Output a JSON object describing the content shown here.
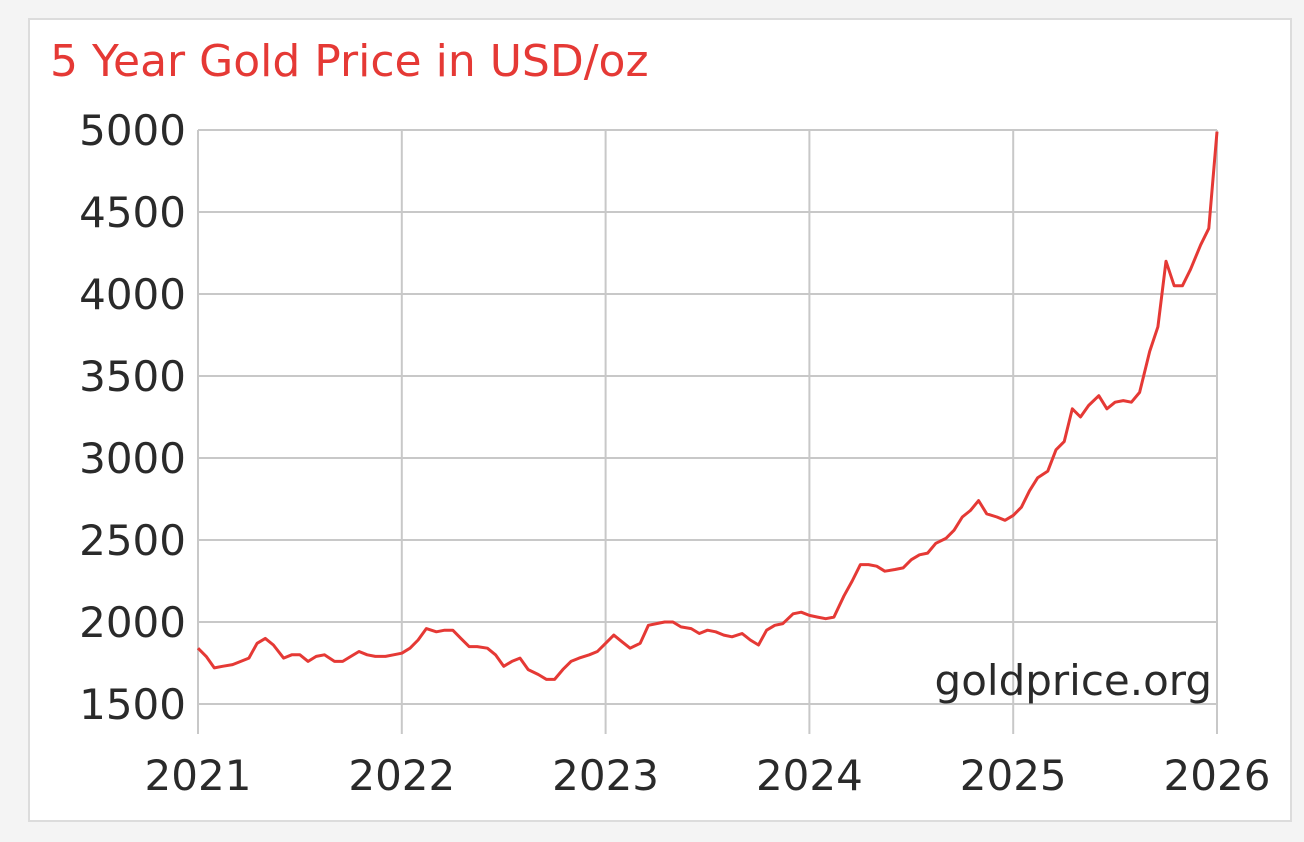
{
  "chart_data": {
    "type": "line",
    "title": "5 Year Gold Price in USD/oz",
    "watermark": "goldprice.org",
    "xlabel": "",
    "ylabel": "",
    "x_ticks": [
      "2021",
      "2022",
      "2023",
      "2024",
      "2025",
      "2026"
    ],
    "y_ticks": [
      "5000",
      "4500",
      "4000",
      "3500",
      "3000",
      "2500",
      "2000",
      "1500"
    ],
    "xlim": [
      2021,
      2026
    ],
    "ylim": [
      1500,
      5000
    ],
    "grid": true,
    "colors": {
      "line": "#e53935",
      "grid": "#c8c8c8",
      "title": "#e53935"
    },
    "series": [
      {
        "x": [
          2021.0,
          2021.04,
          2021.08,
          2021.12,
          2021.17,
          2021.21,
          2021.25,
          2021.29,
          2021.33,
          2021.37,
          2021.42,
          2021.46,
          2021.5,
          2021.54,
          2021.58,
          2021.62,
          2021.67,
          2021.71,
          2021.75,
          2021.79,
          2021.83,
          2021.87,
          2021.92,
          2021.96,
          2022.0,
          2022.04,
          2022.08,
          2022.12,
          2022.17,
          2022.21,
          2022.25,
          2022.29,
          2022.33,
          2022.37,
          2022.42,
          2022.46,
          2022.5,
          2022.54,
          2022.58,
          2022.62,
          2022.67,
          2022.71,
          2022.75,
          2022.79,
          2022.83,
          2022.87,
          2022.92,
          2022.96,
          2023.0,
          2023.04,
          2023.08,
          2023.12,
          2023.17,
          2023.21,
          2023.25,
          2023.29,
          2023.33,
          2023.37,
          2023.42,
          2023.46,
          2023.5,
          2023.54,
          2023.58,
          2023.62,
          2023.67,
          2023.71,
          2023.75,
          2023.79,
          2023.83,
          2023.87,
          2023.92,
          2023.96,
          2024.0,
          2024.04,
          2024.08,
          2024.12,
          2024.17,
          2024.21,
          2024.25,
          2024.29,
          2024.33,
          2024.37,
          2024.42,
          2024.46,
          2024.5,
          2024.54,
          2024.58,
          2024.62,
          2024.67,
          2024.71,
          2024.75,
          2024.79,
          2024.83,
          2024.87,
          2024.92,
          2024.96,
          2025.0,
          2025.04,
          2025.08,
          2025.12,
          2025.17,
          2025.21,
          2025.25,
          2025.29,
          2025.33,
          2025.37,
          2025.42,
          2025.46,
          2025.5,
          2025.54,
          2025.58,
          2025.62,
          2025.67,
          2025.71,
          2025.75,
          2025.79,
          2025.83,
          2025.87,
          2025.92,
          2025.96,
          2026.0
        ],
        "values": [
          1840,
          1790,
          1720,
          1730,
          1740,
          1760,
          1780,
          1870,
          1900,
          1860,
          1780,
          1800,
          1800,
          1760,
          1790,
          1800,
          1760,
          1760,
          1790,
          1820,
          1800,
          1790,
          1790,
          1800,
          1810,
          1840,
          1890,
          1960,
          1940,
          1950,
          1950,
          1900,
          1850,
          1850,
          1840,
          1800,
          1730,
          1760,
          1780,
          1710,
          1680,
          1650,
          1650,
          1710,
          1760,
          1780,
          1800,
          1820,
          1870,
          1920,
          1880,
          1840,
          1870,
          1980,
          1990,
          2000,
          2000,
          1970,
          1960,
          1930,
          1950,
          1940,
          1920,
          1910,
          1930,
          1890,
          1860,
          1950,
          1980,
          1990,
          2050,
          2060,
          2040,
          2030,
          2020,
          2030,
          2160,
          2250,
          2350,
          2350,
          2340,
          2310,
          2320,
          2330,
          2380,
          2410,
          2420,
          2480,
          2510,
          2560,
          2640,
          2680,
          2740,
          2660,
          2640,
          2620,
          2650,
          2700,
          2800,
          2880,
          2920,
          3050,
          3100,
          3300,
          3250,
          3320,
          3380,
          3300,
          3340,
          3350,
          3340,
          3400,
          3650,
          3800,
          4200,
          4050,
          4050,
          4150,
          4300,
          4400,
          4990
        ]
      }
    ]
  }
}
